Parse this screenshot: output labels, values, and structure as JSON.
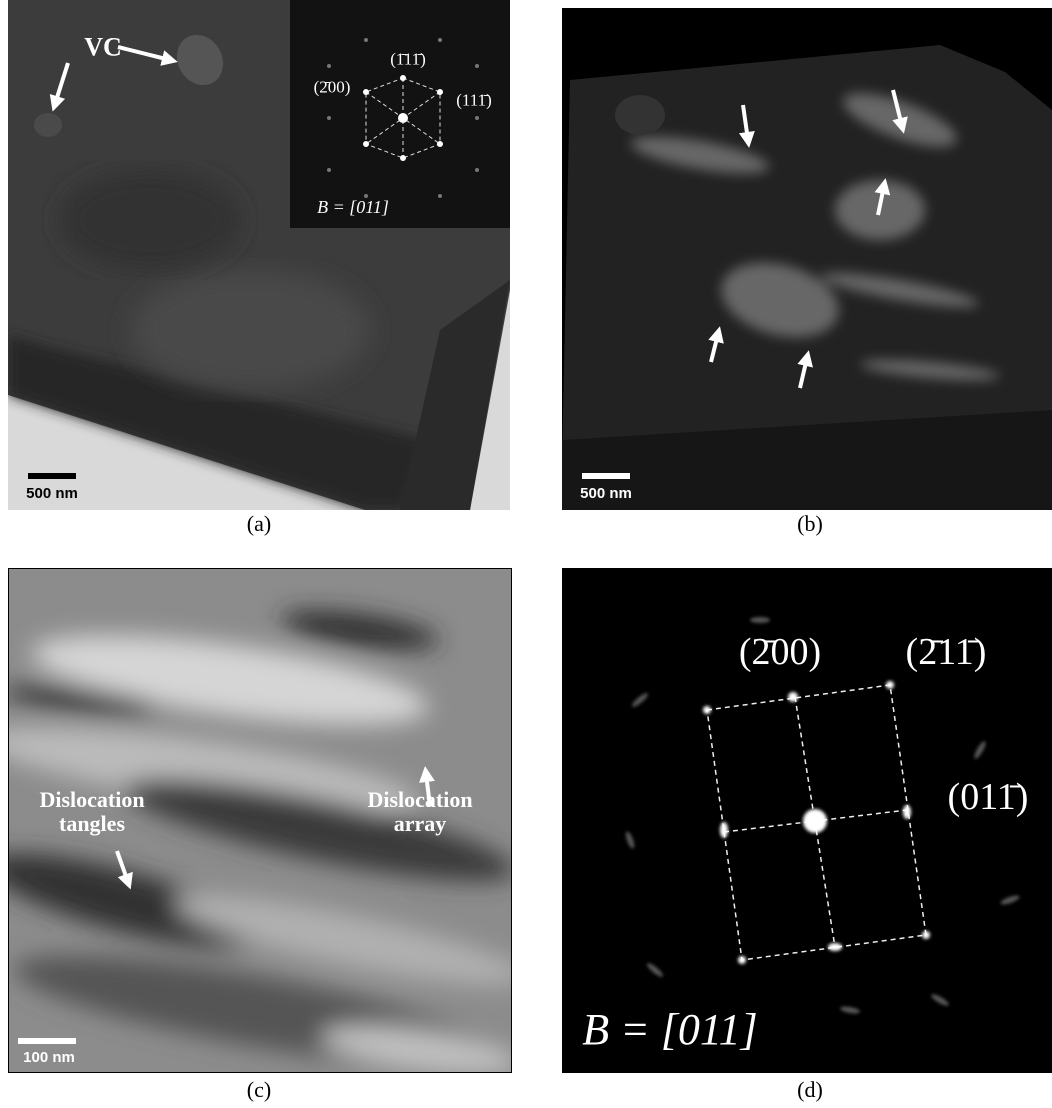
{
  "panels": [
    {
      "caption": "(a)",
      "scale_bar": "500 nm",
      "annotation": "VC",
      "inset_labels": [
        "(2̄00)",
        "(1̄11̄)",
        "(111̄)"
      ],
      "zone_axis": "B = [011]"
    },
    {
      "caption": "(b)",
      "scale_bar": "500 nm"
    },
    {
      "caption": "(c)",
      "scale_bar": "100 nm",
      "annotations": [
        "Dislocation\ntangles",
        "Dislocation\narray"
      ]
    },
    {
      "caption": "(d)",
      "spot_labels": [
        "(2̄00)",
        "(2̄11̄)",
        "(011̄)"
      ],
      "zone_axis": "B = [011]"
    }
  ]
}
